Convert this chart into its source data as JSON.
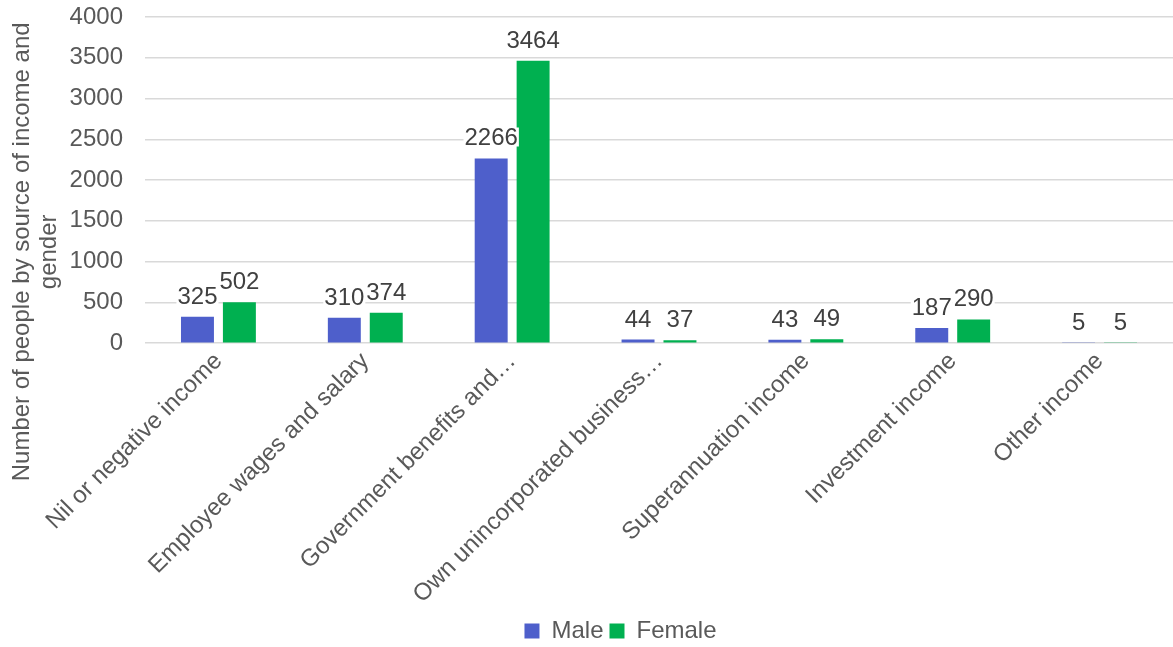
{
  "chart_data": {
    "type": "bar",
    "categories": [
      "Nil or negative income",
      "Employee wages and salary",
      "Government benefits and…",
      "Own unincorporated business…",
      "Superannuation income",
      "Investment income",
      "Other income"
    ],
    "series": [
      {
        "name": "Male",
        "color": "#4e5fcb",
        "values": [
          325,
          310,
          2266,
          44,
          43,
          187,
          5
        ]
      },
      {
        "name": "Female",
        "color": "#00b050",
        "values": [
          502,
          374,
          3464,
          37,
          49,
          290,
          5
        ]
      }
    ],
    "ylabel": "Number of people by source of income and gender",
    "ylim": [
      0,
      4000
    ],
    "yticks": [
      0,
      500,
      1000,
      1500,
      2000,
      2500,
      3000,
      3500,
      4000
    ],
    "grid": "y",
    "legend": "bottom",
    "data_labels": true
  }
}
